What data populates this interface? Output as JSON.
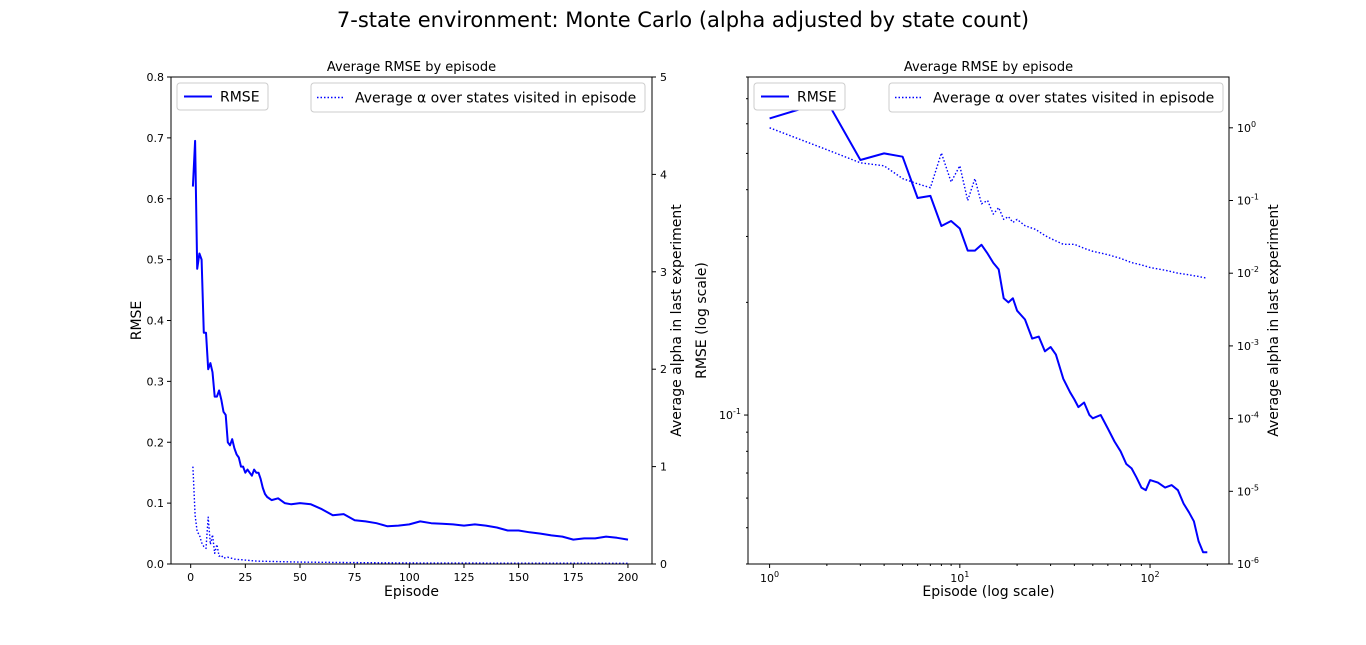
{
  "figure": {
    "title": "7-state environment: Monte Carlo (alpha adjusted by state count)"
  },
  "colors": {
    "line": "#0000ff",
    "axis": "#000000",
    "legend_border": "#cccccc"
  },
  "chart_data": [
    {
      "type": "line",
      "title": "Average RMSE by episode",
      "xlabel": "Episode",
      "ylabel": "RMSE",
      "y2label": "Average alpha in last experiment",
      "xlim": [
        -9,
        211
      ],
      "ylim": [
        0,
        0.8
      ],
      "y2lim": [
        0,
        5
      ],
      "xticks": [
        0,
        25,
        50,
        75,
        100,
        125,
        150,
        175,
        200
      ],
      "yticks": [
        0.0,
        0.1,
        0.2,
        0.3,
        0.4,
        0.5,
        0.6,
        0.7,
        0.8
      ],
      "y2ticks": [
        0,
        1,
        2,
        3,
        4,
        5
      ],
      "grid": false,
      "legend": [
        {
          "label": "RMSE",
          "style": "solid",
          "placement": "upper-left"
        },
        {
          "label": "Average α over states visited in episode",
          "style": "dotted",
          "placement": "upper-right"
        }
      ],
      "series": [
        {
          "name": "RMSE",
          "axis": "left",
          "style": "solid",
          "x": [
            1,
            2,
            3,
            4,
            5,
            6,
            7,
            8,
            9,
            10,
            11,
            12,
            13,
            14,
            15,
            16,
            17,
            18,
            19,
            20,
            21,
            22,
            23,
            24,
            25,
            26,
            27,
            28,
            29,
            30,
            31,
            32,
            33,
            34,
            35,
            37,
            40,
            43,
            46,
            50,
            55,
            60,
            65,
            70,
            75,
            80,
            85,
            90,
            95,
            100,
            105,
            110,
            115,
            120,
            125,
            130,
            135,
            140,
            145,
            150,
            155,
            160,
            165,
            170,
            175,
            180,
            185,
            190,
            195,
            200
          ],
          "values": [
            0.62,
            0.695,
            0.485,
            0.51,
            0.5,
            0.38,
            0.38,
            0.32,
            0.33,
            0.315,
            0.275,
            0.275,
            0.285,
            0.27,
            0.25,
            0.245,
            0.2,
            0.195,
            0.205,
            0.19,
            0.18,
            0.175,
            0.16,
            0.16,
            0.15,
            0.155,
            0.15,
            0.145,
            0.155,
            0.15,
            0.15,
            0.14,
            0.125,
            0.115,
            0.11,
            0.105,
            0.108,
            0.1,
            0.098,
            0.1,
            0.098,
            0.09,
            0.08,
            0.082,
            0.072,
            0.07,
            0.067,
            0.062,
            0.063,
            0.065,
            0.07,
            0.067,
            0.066,
            0.065,
            0.063,
            0.065,
            0.063,
            0.06,
            0.055,
            0.055,
            0.052,
            0.05,
            0.047,
            0.045,
            0.04,
            0.042,
            0.042,
            0.045,
            0.043,
            0.04
          ]
        },
        {
          "name": "Average α over states visited in episode",
          "axis": "right",
          "style": "dotted",
          "x": [
            1,
            2,
            3,
            4,
            5,
            6,
            7,
            8,
            9,
            10,
            11,
            12,
            13,
            14,
            15,
            17,
            20,
            25,
            30,
            40,
            50,
            75,
            100,
            150,
            200
          ],
          "values": [
            1.0,
            0.5,
            0.33,
            0.3,
            0.22,
            0.18,
            0.16,
            0.48,
            0.2,
            0.3,
            0.11,
            0.2,
            0.08,
            0.09,
            0.06,
            0.07,
            0.05,
            0.04,
            0.03,
            0.025,
            0.02,
            0.014,
            0.01,
            0.008,
            0.007
          ]
        }
      ]
    },
    {
      "type": "line",
      "title": "Average RMSE by episode",
      "xlabel": "Episode (log scale)",
      "ylabel": "RMSE (log scale)",
      "y2label": "Average alpha in last experiment",
      "xscale": "log",
      "yscale": "log",
      "y2scale": "log",
      "xlim": [
        0.77,
        260
      ],
      "ylim": [
        0.04,
        0.8
      ],
      "y2lim": [
        1e-06,
        5
      ],
      "xticks": [
        1,
        10,
        100
      ],
      "xticklabels": [
        "10^0",
        "10^1",
        "10^2"
      ],
      "yticks": [
        0.1
      ],
      "yticklabels": [
        "10^-1"
      ],
      "y2ticks": [
        1e-06,
        1e-05,
        0.0001,
        0.001,
        0.01,
        0.1,
        1
      ],
      "y2ticklabels": [
        "10^-6",
        "10^-5",
        "10^-4",
        "10^-3",
        "10^-2",
        "10^-1",
        "10^0"
      ],
      "grid": false,
      "legend": [
        {
          "label": "RMSE",
          "style": "solid",
          "placement": "upper-left"
        },
        {
          "label": "Average α over states visited in episode",
          "style": "dotted",
          "placement": "upper-right"
        }
      ],
      "series": [
        {
          "name": "RMSE",
          "axis": "left",
          "style": "solid",
          "x": [
            1,
            2,
            3,
            4,
            5,
            6,
            7,
            8,
            9,
            10,
            11,
            12,
            13,
            14,
            15,
            16,
            17,
            18,
            19,
            20,
            22,
            24,
            26,
            28,
            30,
            32,
            35,
            38,
            40,
            42,
            45,
            48,
            50,
            55,
            60,
            65,
            70,
            75,
            80,
            85,
            90,
            95,
            100,
            110,
            120,
            130,
            140,
            150,
            160,
            170,
            180,
            190,
            200
          ],
          "values": [
            0.62,
            0.69,
            0.48,
            0.5,
            0.49,
            0.38,
            0.385,
            0.32,
            0.33,
            0.315,
            0.275,
            0.275,
            0.285,
            0.27,
            0.255,
            0.245,
            0.205,
            0.2,
            0.205,
            0.19,
            0.18,
            0.16,
            0.162,
            0.148,
            0.152,
            0.145,
            0.125,
            0.115,
            0.11,
            0.105,
            0.108,
            0.1,
            0.098,
            0.1,
            0.092,
            0.085,
            0.08,
            0.074,
            0.072,
            0.068,
            0.064,
            0.063,
            0.067,
            0.066,
            0.064,
            0.065,
            0.063,
            0.058,
            0.055,
            0.052,
            0.046,
            0.043,
            0.043
          ]
        },
        {
          "name": "Average α over states visited in episode",
          "axis": "right",
          "style": "dotted",
          "x": [
            1,
            2,
            3,
            4,
            5,
            6,
            7,
            8,
            9,
            10,
            11,
            12,
            13,
            14,
            15,
            16,
            17,
            18,
            19,
            20,
            22,
            25,
            28,
            30,
            35,
            40,
            45,
            50,
            60,
            70,
            80,
            90,
            100,
            120,
            140,
            160,
            180,
            200
          ],
          "values": [
            1.0,
            0.5,
            0.33,
            0.3,
            0.2,
            0.17,
            0.15,
            0.45,
            0.18,
            0.3,
            0.1,
            0.2,
            0.09,
            0.1,
            0.065,
            0.08,
            0.055,
            0.06,
            0.05,
            0.055,
            0.045,
            0.04,
            0.033,
            0.03,
            0.025,
            0.025,
            0.022,
            0.02,
            0.018,
            0.016,
            0.014,
            0.013,
            0.012,
            0.011,
            0.01,
            0.0095,
            0.009,
            0.0085
          ]
        }
      ]
    }
  ]
}
